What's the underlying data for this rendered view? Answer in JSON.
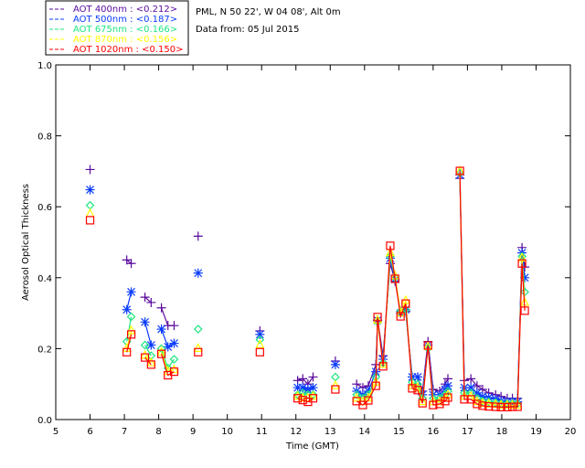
{
  "header": {
    "location": "PML, N 50 22', W 04 08', Alt 0m",
    "date": "Data from: 05 Jul 2015"
  },
  "chart_data": {
    "type": "scatter",
    "title": "",
    "xlabel": "Time (GMT)",
    "ylabel": "Aerosol Optical Thickness",
    "xlim": [
      5,
      20
    ],
    "ylim": [
      0,
      1.0
    ],
    "xticks": [
      "5",
      "6",
      "7",
      "8",
      "9",
      "10",
      "11",
      "12",
      "13",
      "14",
      "15",
      "16",
      "17",
      "18",
      "19",
      "20"
    ],
    "yticks": [
      "0.0",
      "0.2",
      "0.4",
      "0.6",
      "0.8",
      "1.0"
    ],
    "legend_position": "top-left-outside",
    "series": [
      {
        "name": "AOT  400nm : <0.212>",
        "color": "#5a0a9c",
        "marker": "plus"
      },
      {
        "name": "AOT  500nm : <0.187>",
        "color": "#0a3cff",
        "marker": "asterisk"
      },
      {
        "name": "AOT  675nm : <0.166>",
        "color": "#1ee682",
        "marker": "diamond"
      },
      {
        "name": "AOT  870nm : <0.156>",
        "color": "#ffff00",
        "marker": "triangle"
      },
      {
        "name": "AOT 1020nm : <0.150>",
        "color": "#ff0000",
        "marker": "square"
      }
    ],
    "segments": [
      {
        "x": [
          6.0
        ],
        "y": [
          [
            0.705
          ],
          [
            0.648
          ],
          [
            0.604
          ],
          [
            0.58
          ],
          [
            0.562
          ]
        ]
      },
      {
        "x": [
          7.07,
          7.2
        ],
        "y": [
          [
            0.45,
            0.44
          ],
          [
            0.31,
            0.36
          ],
          [
            0.22,
            0.29
          ],
          [
            0.2,
            0.25
          ],
          [
            0.19,
            0.24
          ]
        ]
      },
      {
        "x": [
          7.6,
          7.78
        ],
        "y": [
          [
            0.345,
            0.33
          ],
          [
            0.275,
            0.21
          ],
          [
            0.21,
            0.18
          ],
          [
            0.18,
            0.16
          ],
          [
            0.175,
            0.155
          ]
        ]
      },
      {
        "x": [
          8.08,
          8.27,
          8.45
        ],
        "y": [
          [
            0.315,
            0.265,
            0.265
          ],
          [
            0.255,
            0.205,
            0.215
          ],
          [
            0.2,
            0.145,
            0.17
          ],
          [
            0.19,
            0.135,
            0.14
          ],
          [
            0.185,
            0.125,
            0.135
          ]
        ]
      },
      {
        "x": [
          9.15
        ],
        "y": [
          [
            0.517
          ],
          [
            0.413
          ],
          [
            0.255
          ],
          [
            0.2
          ],
          [
            0.19
          ]
        ]
      },
      {
        "x": [
          10.95
        ],
        "y": [
          [
            0.25
          ],
          [
            0.24
          ],
          [
            0.225
          ],
          [
            0.21
          ],
          [
            0.19
          ]
        ]
      },
      {
        "x": [
          12.05,
          12.2,
          12.35,
          12.5
        ],
        "y": [
          [
            0.11,
            0.115,
            0.1,
            0.12
          ],
          [
            0.09,
            0.09,
            0.085,
            0.09
          ],
          [
            0.07,
            0.075,
            0.07,
            0.07
          ],
          [
            0.065,
            0.06,
            0.06,
            0.065
          ],
          [
            0.06,
            0.055,
            0.05,
            0.06
          ]
        ]
      },
      {
        "x": [
          13.15
        ],
        "y": [
          [
            0.165
          ],
          [
            0.155
          ],
          [
            0.12
          ],
          [
            0.095
          ],
          [
            0.085
          ]
        ]
      },
      {
        "x": [
          13.77,
          13.95,
          14.11,
          14.33,
          14.38,
          14.54,
          14.75,
          14.89,
          15.05,
          15.2,
          15.39,
          15.55,
          15.69,
          15.85,
          16.0,
          16.19,
          16.35,
          16.43
        ],
        "y": [
          [
            0.1,
            0.09,
            0.095,
            0.155,
            0.28,
            0.18,
            0.44,
            0.39,
            0.305,
            0.305,
            0.12,
            0.12,
            0.08,
            0.22,
            0.085,
            0.08,
            0.1,
            0.115
          ],
          [
            0.08,
            0.07,
            0.08,
            0.135,
            0.28,
            0.17,
            0.455,
            0.395,
            0.3,
            0.31,
            0.12,
            0.12,
            0.07,
            0.21,
            0.07,
            0.07,
            0.085,
            0.095
          ],
          [
            0.07,
            0.06,
            0.07,
            0.12,
            0.275,
            0.16,
            0.46,
            0.4,
            0.305,
            0.31,
            0.105,
            0.1,
            0.06,
            0.2,
            0.06,
            0.06,
            0.07,
            0.08
          ],
          [
            0.06,
            0.05,
            0.06,
            0.105,
            0.28,
            0.155,
            0.47,
            0.405,
            0.3,
            0.335,
            0.095,
            0.09,
            0.05,
            0.205,
            0.05,
            0.05,
            0.06,
            0.07
          ],
          [
            0.052,
            0.041,
            0.054,
            0.095,
            0.289,
            0.15,
            0.49,
            0.397,
            0.291,
            0.327,
            0.088,
            0.083,
            0.046,
            0.209,
            0.041,
            0.044,
            0.052,
            0.062
          ]
        ]
      },
      {
        "x": [
          16.78,
          16.91,
          17.1,
          17.28,
          17.44,
          17.62,
          17.82,
          17.98,
          18.16,
          18.31,
          18.46,
          18.59,
          18.67
        ],
        "y": [
          [
            0.68,
            0.11,
            0.115,
            0.095,
            0.085,
            0.075,
            0.07,
            0.065,
            0.06,
            0.06,
            0.06,
            0.485,
            0.43
          ],
          [
            0.69,
            0.09,
            0.09,
            0.075,
            0.065,
            0.062,
            0.058,
            0.053,
            0.05,
            0.05,
            0.05,
            0.47,
            0.4
          ],
          [
            0.695,
            0.075,
            0.075,
            0.06,
            0.052,
            0.05,
            0.048,
            0.045,
            0.045,
            0.045,
            0.045,
            0.46,
            0.36
          ],
          [
            0.7,
            0.065,
            0.065,
            0.05,
            0.045,
            0.043,
            0.042,
            0.04,
            0.04,
            0.04,
            0.04,
            0.455,
            0.33
          ],
          [
            0.701,
            0.057,
            0.057,
            0.044,
            0.039,
            0.037,
            0.036,
            0.035,
            0.035,
            0.036,
            0.036,
            0.44,
            0.307
          ]
        ]
      }
    ]
  }
}
